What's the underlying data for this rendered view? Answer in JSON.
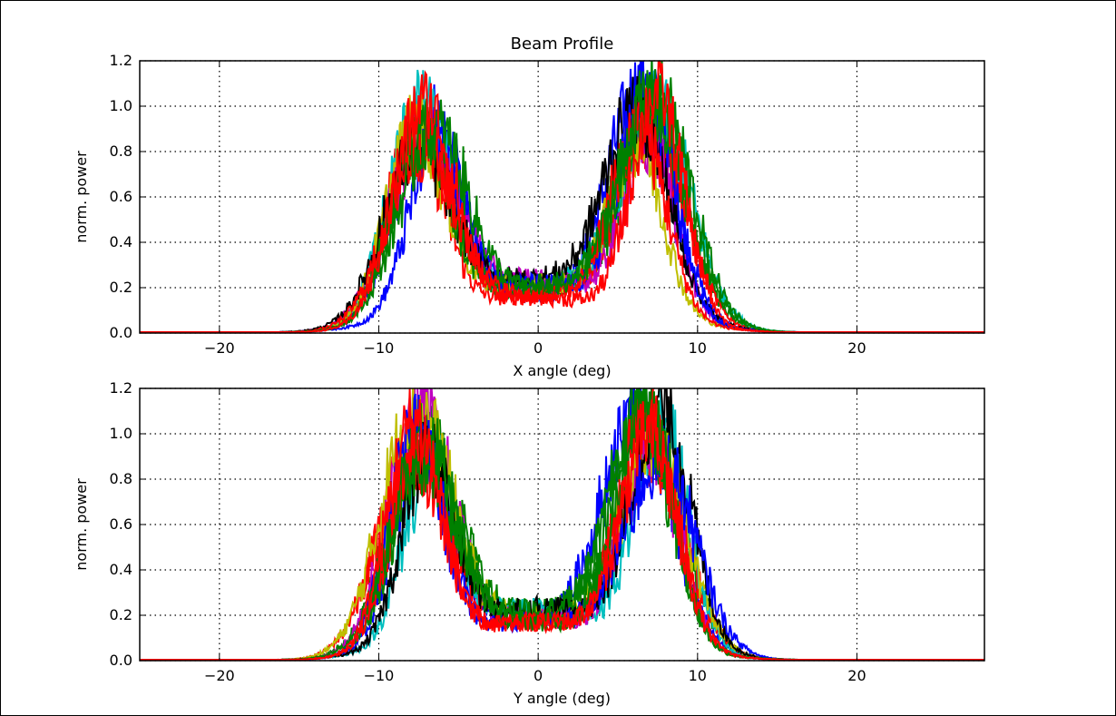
{
  "chart_data": [
    {
      "type": "line",
      "title": "Beam Profile",
      "xlabel": "X angle (deg)",
      "ylabel": "norm. power",
      "xlim": [
        -25,
        28
      ],
      "ylim": [
        0,
        1.2
      ],
      "xticks": [
        -20,
        -10,
        0,
        10,
        20
      ],
      "yticks": [
        0.0,
        0.2,
        0.4,
        0.6,
        0.8,
        1.0,
        1.2
      ],
      "grid": true,
      "series_colors": [
        "#0000ff",
        "#008000",
        "#ff0000",
        "#00bfbf",
        "#bf00bf",
        "#bfbf00",
        "#000000",
        "#0000ff",
        "#008000",
        "#ff0000",
        "#008000",
        "#ff0000"
      ],
      "profile": {
        "peak_left_x": -7.2,
        "peak_right_x": 6.8,
        "peak_height": 0.9,
        "peak_width": 2.6,
        "center_level": 0.2,
        "noise_amplitude": 0.2
      }
    },
    {
      "type": "line",
      "title": "",
      "xlabel": "Y angle (deg)",
      "ylabel": "norm. power",
      "xlim": [
        -25,
        28
      ],
      "ylim": [
        0,
        1.2
      ],
      "xticks": [
        -20,
        -10,
        0,
        10,
        20
      ],
      "yticks": [
        0.0,
        0.2,
        0.4,
        0.6,
        0.8,
        1.0,
        1.2
      ],
      "grid": true,
      "series_colors": [
        "#0000ff",
        "#008000",
        "#ff0000",
        "#00bfbf",
        "#bf00bf",
        "#bfbf00",
        "#000000",
        "#0000ff",
        "#008000",
        "#ff0000",
        "#008000",
        "#ff0000"
      ],
      "profile": {
        "peak_left_x": -7.5,
        "peak_right_x": 7.0,
        "peak_height": 0.95,
        "peak_width": 2.6,
        "center_level": 0.2,
        "noise_amplitude": 0.22
      }
    }
  ]
}
